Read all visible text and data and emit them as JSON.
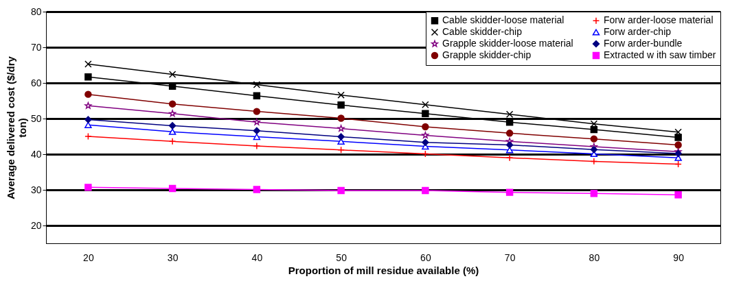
{
  "chart_data": {
    "type": "line",
    "xlabel": "Proportion of mill residue available (%)",
    "ylabel": "Average delivered cost ($/dry ton)",
    "categories": [
      "20",
      "30",
      "40",
      "50",
      "60",
      "70",
      "80",
      "90"
    ],
    "ylim": [
      15,
      80
    ],
    "yticks": [
      20,
      30,
      40,
      50,
      60,
      70,
      80
    ],
    "grid": "y",
    "legend": "top right",
    "series": [
      {
        "name": "Cable skidder-loose material",
        "color": "#000000",
        "marker": "square",
        "values": [
          61.7,
          59.1,
          56.4,
          53.8,
          51.4,
          49.0,
          46.9,
          44.7
        ]
      },
      {
        "name": "Cable skidder-chip",
        "color": "#000000",
        "marker": "x",
        "values": [
          65.3,
          62.4,
          59.5,
          56.6,
          53.9,
          51.2,
          48.5,
          46.2
        ]
      },
      {
        "name": "Grapple skidder-loose material",
        "color": "#800080",
        "marker": "star",
        "values": [
          53.6,
          51.4,
          49.0,
          47.2,
          45.3,
          43.6,
          42.1,
          40.7
        ]
      },
      {
        "name": "Grapple skidder-chip",
        "color": "#800000",
        "marker": "circle",
        "values": [
          56.8,
          54.1,
          52.0,
          50.1,
          47.7,
          45.9,
          44.3,
          42.6
        ]
      },
      {
        "name": "Forw arder-loose material",
        "color": "#ff0000",
        "marker": "cross",
        "values": [
          45.0,
          43.6,
          42.3,
          41.2,
          40.1,
          39.0,
          38.0,
          37.2
        ]
      },
      {
        "name": "Forw arder-chip",
        "color": "#0000ff",
        "marker": "triangle",
        "values": [
          48.2,
          46.3,
          44.9,
          43.6,
          42.2,
          41.2,
          40.1,
          39.0
        ]
      },
      {
        "name": "Forw arder-bundle",
        "color": "#000080",
        "marker": "diamond",
        "values": [
          49.7,
          48.0,
          46.6,
          44.9,
          43.3,
          42.6,
          41.3,
          40.2
        ]
      },
      {
        "name": "Extracted w ith saw timber",
        "color": "#ff00ff",
        "marker": "square",
        "values": [
          30.7,
          30.4,
          30.1,
          29.8,
          29.8,
          29.3,
          29.0,
          28.6
        ]
      }
    ]
  }
}
